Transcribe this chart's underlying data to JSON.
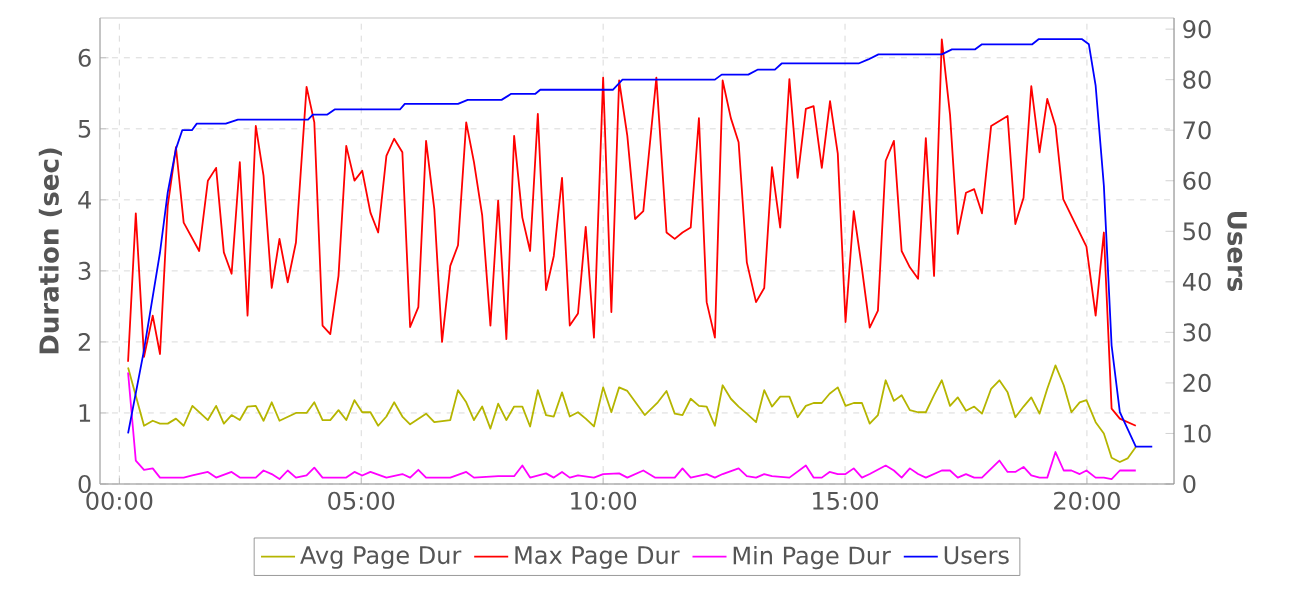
{
  "chart_data": {
    "type": "line",
    "ylabel": "Duration (sec)",
    "y2label": "Users",
    "xlim": [
      -0.4,
      21.8
    ],
    "xticks": [
      {
        "value": 0,
        "label": "00:00"
      },
      {
        "value": 5,
        "label": "05:00"
      },
      {
        "value": 10,
        "label": "10:00"
      },
      {
        "value": 15,
        "label": "15:00"
      },
      {
        "value": 20,
        "label": "20:00"
      }
    ],
    "ylim": [
      0,
      6.56
    ],
    "yticks": [
      0,
      1,
      2,
      3,
      4,
      5,
      6
    ],
    "y2lim": [
      0,
      92.2
    ],
    "y2ticks": [
      0,
      10,
      20,
      30,
      40,
      50,
      60,
      70,
      80,
      90
    ],
    "grid": true,
    "legend": "bottom",
    "series": [
      {
        "name": "Avg Page Dur",
        "color": "#b5b500",
        "x": [
          0.18,
          0.51,
          0.69,
          0.84,
          1.0,
          1.17,
          1.33,
          1.51,
          1.83,
          2.0,
          2.16,
          2.32,
          2.49,
          2.65,
          2.82,
          2.98,
          3.15,
          3.31,
          3.65,
          3.87,
          4.03,
          4.2,
          4.36,
          4.53,
          4.69,
          4.86,
          5.02,
          5.19,
          5.35,
          5.52,
          5.68,
          5.85,
          6.01,
          6.34,
          6.51,
          6.84,
          7.0,
          7.17,
          7.33,
          7.5,
          7.67,
          7.83,
          8.0,
          8.16,
          8.33,
          8.49,
          8.65,
          8.82,
          8.98,
          9.15,
          9.31,
          9.48,
          9.64,
          9.81,
          10.0,
          10.17,
          10.33,
          10.5,
          10.86,
          11.13,
          11.31,
          11.48,
          11.64,
          11.81,
          11.98,
          12.14,
          12.31,
          12.47,
          12.64,
          12.8,
          12.97,
          13.16,
          13.33,
          13.49,
          13.66,
          13.85,
          14.02,
          14.19,
          14.35,
          14.52,
          14.68,
          14.85,
          15.01,
          15.18,
          15.35,
          15.51,
          15.68,
          15.84,
          16.01,
          16.17,
          16.34,
          16.51,
          16.67,
          16.84,
          17.0,
          17.17,
          17.33,
          17.5,
          17.67,
          17.83,
          18.02,
          18.19,
          18.36,
          18.52,
          18.69,
          18.85,
          19.02,
          19.18,
          19.35,
          19.52,
          19.68,
          19.85,
          19.99,
          20.18,
          20.35,
          20.51,
          20.68,
          20.84,
          21.01
        ],
        "values": [
          1.64,
          0.82,
          0.89,
          0.85,
          0.85,
          0.92,
          0.82,
          1.1,
          0.9,
          1.1,
          0.85,
          0.97,
          0.9,
          1.09,
          1.1,
          0.89,
          1.15,
          0.89,
          1.0,
          1.0,
          1.15,
          0.9,
          0.9,
          1.04,
          0.9,
          1.18,
          1.01,
          1.01,
          0.82,
          0.95,
          1.15,
          0.95,
          0.84,
          0.99,
          0.87,
          0.9,
          1.32,
          1.15,
          0.9,
          1.09,
          0.78,
          1.13,
          0.9,
          1.09,
          1.09,
          0.81,
          1.32,
          0.97,
          0.95,
          1.29,
          0.95,
          1.01,
          0.92,
          0.81,
          1.36,
          1.01,
          1.36,
          1.31,
          0.97,
          1.15,
          1.31,
          0.99,
          0.97,
          1.2,
          1.1,
          1.09,
          0.82,
          1.39,
          1.2,
          1.09,
          0.99,
          0.87,
          1.32,
          1.09,
          1.23,
          1.23,
          0.94,
          1.1,
          1.14,
          1.14,
          1.27,
          1.36,
          1.1,
          1.14,
          1.14,
          0.85,
          0.97,
          1.46,
          1.17,
          1.25,
          1.04,
          1.01,
          1.01,
          1.25,
          1.46,
          1.1,
          1.22,
          1.03,
          1.09,
          0.99,
          1.34,
          1.46,
          1.29,
          0.94,
          1.09,
          1.22,
          0.99,
          1.34,
          1.67,
          1.39,
          1.01,
          1.15,
          1.18,
          0.87,
          0.71,
          0.37,
          0.31,
          0.36,
          0.52
        ]
      },
      {
        "name": "Max Page Dur",
        "color": "#ff0000",
        "x": [
          0.18,
          0.34,
          0.51,
          0.69,
          0.84,
          1.0,
          1.17,
          1.33,
          1.65,
          1.83,
          2.0,
          2.16,
          2.32,
          2.49,
          2.65,
          2.82,
          2.98,
          3.15,
          3.31,
          3.48,
          3.65,
          3.87,
          4.03,
          4.2,
          4.36,
          4.53,
          4.69,
          4.86,
          5.02,
          5.19,
          5.35,
          5.52,
          5.68,
          5.85,
          6.01,
          6.18,
          6.34,
          6.51,
          6.67,
          6.84,
          7.0,
          7.17,
          7.33,
          7.5,
          7.67,
          7.83,
          8.0,
          8.16,
          8.33,
          8.49,
          8.65,
          8.82,
          8.98,
          9.15,
          9.31,
          9.48,
          9.64,
          9.81,
          10.0,
          10.17,
          10.33,
          10.5,
          10.66,
          10.83,
          11.1,
          11.31,
          11.48,
          11.64,
          11.81,
          11.98,
          12.14,
          12.31,
          12.47,
          12.64,
          12.8,
          12.97,
          13.16,
          13.33,
          13.49,
          13.66,
          13.85,
          14.02,
          14.19,
          14.35,
          14.52,
          14.69,
          14.85,
          15.01,
          15.18,
          15.35,
          15.51,
          15.68,
          15.84,
          16.01,
          16.17,
          16.34,
          16.51,
          16.67,
          16.84,
          17.0,
          17.17,
          17.33,
          17.5,
          17.67,
          17.83,
          18.02,
          18.36,
          18.52,
          18.69,
          18.85,
          19.02,
          19.18,
          19.35,
          19.51,
          19.99,
          20.18,
          20.35,
          20.51,
          20.68,
          21.01
        ],
        "values": [
          1.72,
          3.81,
          1.79,
          2.37,
          1.83,
          3.92,
          4.74,
          3.68,
          3.28,
          4.27,
          4.45,
          3.26,
          2.96,
          4.53,
          2.37,
          5.04,
          4.34,
          2.76,
          3.45,
          2.84,
          3.4,
          5.59,
          5.09,
          2.23,
          2.11,
          2.93,
          4.76,
          4.27,
          4.41,
          3.82,
          3.54,
          4.62,
          4.86,
          4.67,
          2.21,
          2.49,
          4.83,
          3.87,
          2.0,
          3.07,
          3.36,
          5.09,
          4.53,
          3.78,
          2.23,
          3.99,
          2.04,
          4.9,
          3.75,
          3.28,
          5.21,
          2.73,
          3.21,
          4.31,
          2.23,
          2.4,
          3.62,
          2.06,
          5.72,
          2.42,
          5.68,
          4.9,
          3.73,
          3.84,
          5.72,
          3.54,
          3.45,
          3.54,
          3.61,
          5.15,
          2.56,
          2.06,
          5.68,
          5.15,
          4.81,
          3.12,
          2.56,
          2.76,
          4.46,
          3.61,
          5.7,
          4.31,
          5.28,
          5.32,
          4.45,
          5.39,
          4.65,
          2.28,
          3.84,
          3.03,
          2.2,
          2.44,
          4.55,
          4.83,
          3.28,
          3.05,
          2.89,
          4.87,
          2.93,
          6.26,
          5.2,
          3.52,
          4.1,
          4.15,
          3.81,
          5.04,
          5.18,
          3.66,
          4.03,
          5.6,
          4.67,
          5.42,
          5.04,
          4.01,
          3.34,
          2.37,
          3.54,
          1.06,
          0.92,
          0.82
        ]
      },
      {
        "name": "Min Page Dur",
        "color": "#ff00ff",
        "x": [
          0.18,
          0.34,
          0.51,
          0.69,
          0.84,
          1.0,
          1.33,
          1.51,
          1.83,
          2.0,
          2.32,
          2.49,
          2.82,
          2.98,
          3.15,
          3.31,
          3.48,
          3.65,
          3.87,
          4.03,
          4.2,
          4.69,
          4.86,
          5.02,
          5.19,
          5.52,
          5.85,
          6.01,
          6.18,
          6.34,
          6.84,
          7.17,
          7.33,
          7.83,
          8.16,
          8.33,
          8.49,
          8.82,
          8.98,
          9.15,
          9.31,
          9.48,
          9.81,
          10.0,
          10.33,
          10.5,
          10.83,
          11.07,
          11.48,
          11.64,
          11.81,
          12.14,
          12.31,
          12.47,
          12.8,
          12.97,
          13.16,
          13.33,
          13.49,
          13.85,
          14.19,
          14.35,
          14.52,
          14.68,
          14.85,
          15.01,
          15.18,
          15.35,
          15.51,
          15.84,
          16.01,
          16.17,
          16.34,
          16.51,
          16.67,
          17.0,
          17.17,
          17.33,
          17.5,
          17.67,
          17.83,
          18.19,
          18.36,
          18.52,
          18.69,
          18.85,
          19.02,
          19.18,
          19.35,
          19.52,
          19.68,
          19.85,
          19.99,
          20.18,
          20.35,
          20.51,
          20.68,
          20.84,
          21.01
        ],
        "values": [
          1.57,
          0.33,
          0.2,
          0.22,
          0.09,
          0.09,
          0.09,
          0.12,
          0.17,
          0.09,
          0.17,
          0.09,
          0.09,
          0.19,
          0.14,
          0.07,
          0.19,
          0.09,
          0.12,
          0.23,
          0.09,
          0.09,
          0.17,
          0.12,
          0.17,
          0.09,
          0.14,
          0.09,
          0.2,
          0.09,
          0.09,
          0.17,
          0.09,
          0.11,
          0.11,
          0.26,
          0.09,
          0.15,
          0.09,
          0.17,
          0.09,
          0.12,
          0.09,
          0.14,
          0.15,
          0.09,
          0.19,
          0.09,
          0.09,
          0.22,
          0.09,
          0.14,
          0.09,
          0.14,
          0.22,
          0.11,
          0.09,
          0.14,
          0.11,
          0.09,
          0.26,
          0.09,
          0.09,
          0.17,
          0.14,
          0.14,
          0.22,
          0.09,
          0.14,
          0.26,
          0.19,
          0.09,
          0.22,
          0.14,
          0.09,
          0.19,
          0.19,
          0.09,
          0.14,
          0.09,
          0.09,
          0.33,
          0.17,
          0.17,
          0.24,
          0.12,
          0.09,
          0.09,
          0.45,
          0.19,
          0.19,
          0.14,
          0.19,
          0.09,
          0.09,
          0.07,
          0.19,
          0.19,
          0.19
        ]
      },
      {
        "name": "Users",
        "color": "#0000ff",
        "axis": "y2",
        "x": [
          0.18,
          0.5,
          0.84,
          1.0,
          1.17,
          1.3,
          1.5,
          1.6,
          2.2,
          2.45,
          3.9,
          4.0,
          4.3,
          4.45,
          5.8,
          5.9,
          7.0,
          7.2,
          7.9,
          8.1,
          8.6,
          8.7,
          10.2,
          10.4,
          12.31,
          12.45,
          13.0,
          13.2,
          13.55,
          13.69,
          15.28,
          15.48,
          15.69,
          17.0,
          17.21,
          17.69,
          17.83,
          18.87,
          19.0,
          19.9,
          20.04,
          20.18,
          20.35,
          20.51,
          20.68,
          21.01,
          21.35
        ],
        "values": [
          10,
          26,
          45.8,
          57.7,
          66.3,
          70,
          70,
          71.3,
          71.3,
          72.1,
          72.1,
          73.1,
          73.1,
          74.1,
          74.1,
          75.2,
          75.2,
          76,
          76,
          77.2,
          77.2,
          78,
          78,
          80,
          80,
          81,
          81,
          82,
          82,
          83.2,
          83.2,
          84,
          85,
          85,
          86,
          86,
          87,
          87,
          88,
          88,
          87,
          78.8,
          59,
          27.4,
          14.2,
          7.4,
          7.4
        ]
      }
    ]
  }
}
